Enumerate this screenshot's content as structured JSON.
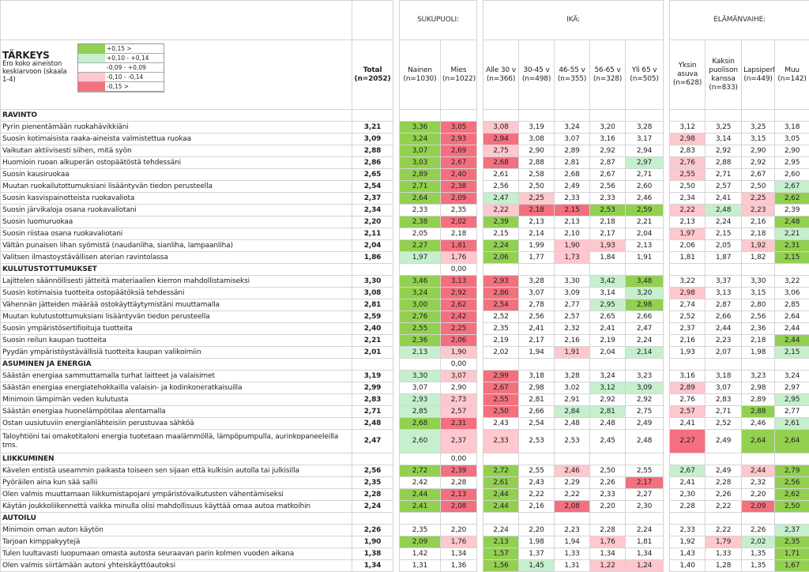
{
  "title": "TÄRKEYS",
  "subtitle": "Ero koko aineiston keskiarvoon (skaala 1-4)",
  "legend": [
    {
      "label": "+0,15 >",
      "color": "#92d050"
    },
    {
      "label": "+0,10  -  +0,14",
      "color": "#c6efce"
    },
    {
      "label": "-0,09  -  +0,09",
      "color": "#ffffff"
    },
    {
      "label": "-0,10  -  -0,14",
      "color": "#ffc7ce"
    },
    {
      "label": "-0,15 >",
      "color": "#f4707e"
    }
  ],
  "groups": [
    "SUKUPUOLI:",
    "IKÄ:",
    "ELÄMÄNVAIHE:"
  ],
  "columns": [
    {
      "name": "Total",
      "n": "(n=2052)"
    },
    {
      "name": "Nainen",
      "n": "(n=1030)"
    },
    {
      "name": "Mies",
      "n": "(n=1022)"
    },
    {
      "name": "Alle 30 v",
      "n": "(n=366)"
    },
    {
      "name": "30-45 v",
      "n": "(n=498)"
    },
    {
      "name": "46-55 v",
      "n": "(n=355)"
    },
    {
      "name": "56-65 v",
      "n": "(n=328)"
    },
    {
      "name": "Yli 65 v",
      "n": "(n=505)"
    },
    {
      "name": "Yksin asuva",
      "n": "(n=628)"
    },
    {
      "name": "Kaksin puolison kanssa",
      "n": "(n=833)"
    },
    {
      "name": "Lapsiperhe",
      "n": "(n=449)"
    },
    {
      "name": "Muu",
      "n": "(n=142)"
    }
  ],
  "sections": [
    {
      "name": "RAVINTO",
      "values": [
        null,
        null,
        null,
        null,
        null,
        null,
        null,
        null,
        null,
        null,
        null,
        null
      ],
      "rows": [
        {
          "label": "Pyrin pienentämään ruokahävikkiäni",
          "values": [
            "3,21",
            "3,36",
            "3,05",
            "3,08",
            "3,19",
            "3,24",
            "3,20",
            "3,28",
            "3,12",
            "3,25",
            "3,25",
            "3,18"
          ]
        },
        {
          "label": "Suosin kotimaisista raaka-aineista valmistettua ruokaa",
          "values": [
            "3,09",
            "3,24",
            "2,93",
            "2,94",
            "3,08",
            "3,07",
            "3,16",
            "3,17",
            "2,98",
            "3,14",
            "3,15",
            "3,05"
          ]
        },
        {
          "label": "Vaikutan aktiivisesti siihen, mitä syön",
          "values": [
            "2,88",
            "3,07",
            "2,69",
            "2,75",
            "2,90",
            "2,89",
            "2,92",
            "2,94",
            "2,83",
            "2,92",
            "2,90",
            "2,90"
          ]
        },
        {
          "label": "Huomioin ruoan alkuperän ostopäätöstä tehdessäni",
          "values": [
            "2,86",
            "3,03",
            "2,67",
            "2,68",
            "2,88",
            "2,81",
            "2,87",
            "2,97",
            "2,76",
            "2,88",
            "2,92",
            "2,95"
          ]
        },
        {
          "label": "Suosin kausiruokaa",
          "values": [
            "2,65",
            "2,89",
            "2,40",
            "2,61",
            "2,58",
            "2,68",
            "2,67",
            "2,71",
            "2,55",
            "2,71",
            "2,67",
            "2,60"
          ]
        },
        {
          "label": "Muutan ruokailutottumuksiani lisääntyvän tiedon perusteella",
          "values": [
            "2,54",
            "2,71",
            "2,38",
            "2,56",
            "2,50",
            "2,49",
            "2,56",
            "2,60",
            "2,50",
            "2,57",
            "2,50",
            "2,67"
          ]
        },
        {
          "label": "Suosin kasvispainotteista ruokavaliota",
          "values": [
            "2,37",
            "2,64",
            "2,09",
            "2,47",
            "2,25",
            "2,33",
            "2,33",
            "2,46",
            "2,34",
            "2,41",
            "2,25",
            "2,62"
          ]
        },
        {
          "label": "Suosin järvikaloja osana ruokavaliotani",
          "values": [
            "2,34",
            "2,33",
            "2,35",
            "2,22",
            "2,18",
            "2,15",
            "2,53",
            "2,59",
            "2,22",
            "2,48",
            "2,23",
            "2,39"
          ]
        },
        {
          "label": "Suosin luomuruokaa",
          "values": [
            "2,20",
            "2,38",
            "2,02",
            "2,39",
            "2,13",
            "2,13",
            "2,18",
            "2,21",
            "2,13",
            "2,24",
            "2,16",
            "2,48"
          ]
        },
        {
          "label": "Suosin riistaa osana ruokavaliotani",
          "values": [
            "2,11",
            "2,05",
            "2,18",
            "2,15",
            "2,14",
            "2,10",
            "2,17",
            "2,04",
            "1,97",
            "2,15",
            "2,18",
            "2,21"
          ]
        },
        {
          "label": "Vältän punaisen lihan syömistä (naudanliha, sianliha, lampaanliha)",
          "values": [
            "2,04",
            "2,27",
            "1,81",
            "2,24",
            "1,99",
            "1,90",
            "1,93",
            "2,13",
            "2,06",
            "2,05",
            "1,92",
            "2,31"
          ]
        },
        {
          "label": "Valitsen ilmastoystävällisen aterian ravintolassa",
          "values": [
            "1,86",
            "1,97",
            "1,76",
            "2,06",
            "1,77",
            "1,73",
            "1,84",
            "1,91",
            "1,81",
            "1,87",
            "1,82",
            "2,15"
          ]
        }
      ]
    },
    {
      "name": "KULUTUSTOTTUMUKSET",
      "values": [
        null,
        null,
        "0,00",
        null,
        null,
        null,
        null,
        null,
        null,
        null,
        null,
        null
      ],
      "rows": [
        {
          "label": "Lajittelen säännöllisesti jätteitä materiaalien kierron mahdollistamiseksi",
          "values": [
            "3,30",
            "3,46",
            "3,13",
            "2,93",
            "3,28",
            "3,30",
            "3,42",
            "3,48",
            "3,22",
            "3,37",
            "3,30",
            "3,22"
          ]
        },
        {
          "label": "Suosin kotimaisia tuotteita ostopäätöksiä tehdessäni",
          "values": [
            "3,08",
            "3,24",
            "2,92",
            "2,86",
            "3,07",
            "3,09",
            "3,14",
            "3,20",
            "2,98",
            "3,13",
            "3,15",
            "3,06"
          ]
        },
        {
          "label": "Vähennän jätteiden määrää ostokäyttäytymistäni muuttamalla",
          "values": [
            "2,81",
            "3,00",
            "2,62",
            "2,54",
            "2,78",
            "2,77",
            "2,95",
            "2,98",
            "2,74",
            "2,87",
            "2,80",
            "2,85"
          ]
        },
        {
          "label": "Muutan kulutustottumuksiani lisääntyvän tiedon perusteella",
          "values": [
            "2,59",
            "2,76",
            "2,42",
            "2,52",
            "2,56",
            "2,57",
            "2,65",
            "2,66",
            "2,52",
            "2,66",
            "2,56",
            "2,64"
          ]
        },
        {
          "label": "Suosin ympäristösertifioituja tuotteita",
          "values": [
            "2,40",
            "2,55",
            "2,25",
            "2,35",
            "2,41",
            "2,32",
            "2,41",
            "2,47",
            "2,37",
            "2,44",
            "2,36",
            "2,44"
          ]
        },
        {
          "label": "Suosin reilun kaupan tuotteita",
          "values": [
            "2,21",
            "2,36",
            "2,06",
            "2,19",
            "2,17",
            "2,16",
            "2,19",
            "2,24",
            "2,16",
            "2,23",
            "2,18",
            "2,44"
          ]
        },
        {
          "label": "Pyydän ympäristöystävällisiä tuotteita kaupan valikoimiin",
          "values": [
            "2,01",
            "2,13",
            "1,90",
            "2,02",
            "1,94",
            "1,91",
            "2,04",
            "2,14",
            "1,93",
            "2,07",
            "1,98",
            "2,15"
          ]
        }
      ]
    },
    {
      "name": "ASUMINEN JA ENERGIA",
      "values": [
        null,
        null,
        "0,00",
        null,
        null,
        null,
        null,
        null,
        null,
        null,
        null,
        null
      ],
      "rows": [
        {
          "label": "Säästän energiaa sammuttamalla turhat laitteet ja valaisimet",
          "values": [
            "3,19",
            "3,30",
            "3,07",
            "2,99",
            "3,18",
            "3,28",
            "3,24",
            "3,23",
            "3,16",
            "3,18",
            "3,23",
            "3,24"
          ]
        },
        {
          "label": "Säästän energiaa energiatehokkailla valaisin- ja kodinkoneratkaisuilla",
          "values": [
            "2,99",
            "3,07",
            "2,90",
            "2,67",
            "2,98",
            "3,02",
            "3,12",
            "3,09",
            "2,89",
            "3,07",
            "2,98",
            "2,97"
          ]
        },
        {
          "label": "Minimoin lämpimän veden kulutusta",
          "values": [
            "2,83",
            "2,93",
            "2,73",
            "2,55",
            "2,81",
            "2,91",
            "2,92",
            "2,92",
            "2,76",
            "2,83",
            "2,89",
            "2,95"
          ]
        },
        {
          "label": "Säästän energiaa huonelämpötilaa alentamalla",
          "values": [
            "2,71",
            "2,85",
            "2,57",
            "2,50",
            "2,66",
            "2,84",
            "2,81",
            "2,75",
            "2,57",
            "2,71",
            "2,88",
            "2,77"
          ]
        },
        {
          "label": "Ostan uusiutuviin energianlähteisiin perustuvaa sähköä",
          "values": [
            "2,48",
            "2,68",
            "2,31",
            "2,43",
            "2,54",
            "2,48",
            "2,48",
            "2,49",
            "2,41",
            "2,52",
            "2,46",
            "2,61"
          ]
        },
        {
          "label": "Taloyhtiöni tai omakotitaloni energia tuotetaan maalämmöllä, lämpöpumpulla, aurinkopaneeleilla tms.",
          "values": [
            "2,47",
            "2,60",
            "2,37",
            "2,33",
            "2,53",
            "2,53",
            "2,45",
            "2,48",
            "2,27",
            "2,49",
            "2,64",
            "2,64"
          ]
        }
      ]
    },
    {
      "name": "LIIKKUMINEN",
      "values": [
        null,
        null,
        "0,00",
        null,
        null,
        null,
        null,
        null,
        null,
        null,
        null,
        null
      ],
      "rows": [
        {
          "label": "Kävelen entistä useammin paikasta toiseen sen sijaan että kulkisin autolla tai julkisilla",
          "values": [
            "2,56",
            "2,72",
            "2,39",
            "2,72",
            "2,55",
            "2,46",
            "2,50",
            "2,55",
            "2,67",
            "2,49",
            "2,44",
            "2,79"
          ]
        },
        {
          "label": "Pyöräilen aina kun sää sallii",
          "values": [
            "2,35",
            "2,42",
            "2,28",
            "2,61",
            "2,43",
            "2,29",
            "2,26",
            "2,17",
            "2,41",
            "2,28",
            "2,32",
            "2,56"
          ]
        },
        {
          "label": "Olen valmis muuttamaan liikkumistapojani ympäristövaikutusten vähentämiseksi",
          "values": [
            "2,28",
            "2,44",
            "2,13",
            "2,44",
            "2,22",
            "2,22",
            "2,33",
            "2,27",
            "2,30",
            "2,26",
            "2,20",
            "2,62"
          ]
        },
        {
          "label": "Käytän joukkoliikennettä vaikka minulla olisi mahdollisuus käyttää omaa autoa matkoihin",
          "values": [
            "2,24",
            "2,41",
            "2,08",
            "2,44",
            "2,16",
            "2,08",
            "2,20",
            "2,30",
            "2,28",
            "2,22",
            "2,09",
            "2,50"
          ]
        }
      ]
    },
    {
      "name": "AUTOILU",
      "values": [
        null,
        null,
        null,
        null,
        null,
        null,
        null,
        null,
        null,
        null,
        null,
        null
      ],
      "rows": [
        {
          "label": "Minimoin oman auton käytön",
          "values": [
            "2,26",
            "2,35",
            "2,20",
            "2,24",
            "2,20",
            "2,23",
            "2,28",
            "2,24",
            "2,33",
            "2,22",
            "2,26",
            "2,37"
          ]
        },
        {
          "label": "Tarjoan kimppakyytejä",
          "values": [
            "1,90",
            "2,09",
            "1,76",
            "2,13",
            "1,98",
            "1,94",
            "1,76",
            "1,81",
            "1,92",
            "1,79",
            "2,02",
            "2,35"
          ]
        },
        {
          "label": "Tulen luultavasti luopumaan omasta autosta seuraavan parin kolmen vuoden aikana",
          "values": [
            "1,38",
            "1,42",
            "1,34",
            "1,57",
            "1,37",
            "1,33",
            "1,34",
            "1,34",
            "1,43",
            "1,33",
            "1,35",
            "1,71"
          ]
        },
        {
          "label": "Olen valmis siirtämään autoni yhteiskäyttöautoksi",
          "values": [
            "1,34",
            "1,31",
            "1,36",
            "1,56",
            "1,45",
            "1,31",
            "1,22",
            "1,24",
            "1,40",
            "1,28",
            "1,35",
            "1,67"
          ]
        }
      ]
    }
  ]
}
